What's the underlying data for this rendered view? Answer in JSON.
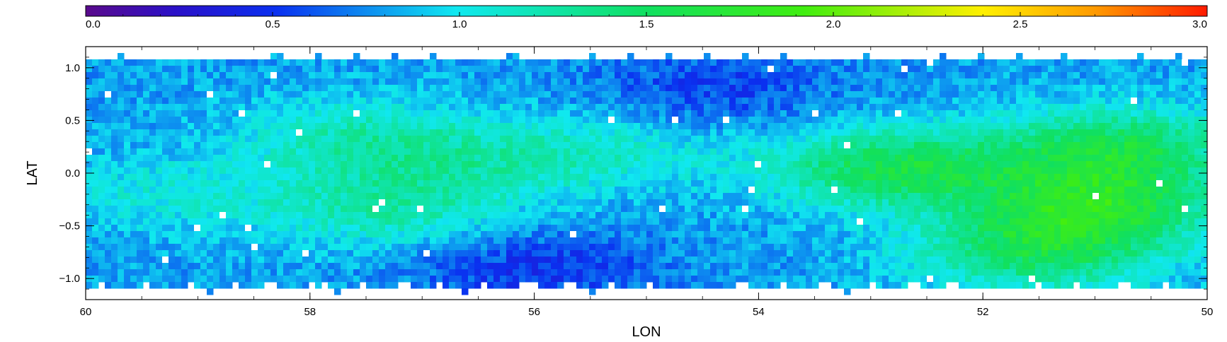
{
  "chart_data": {
    "type": "heatmap",
    "xlabel": "LON",
    "ylabel": "LAT",
    "xlim": [
      60,
      50
    ],
    "ylim": [
      -1.2,
      1.2
    ],
    "x_ticks": [
      60,
      58,
      56,
      54,
      52,
      50
    ],
    "x_tick_labels": [
      "60",
      "58",
      "56",
      "54",
      "52",
      "50"
    ],
    "y_ticks": [
      -1.0,
      -0.5,
      0.0,
      0.5,
      1.0
    ],
    "y_tick_labels": [
      "−1.0",
      "−0.5",
      "0.0",
      "0.5",
      "1.0"
    ],
    "colorbar": {
      "range": [
        0.0,
        3.0
      ],
      "ticks": [
        0.0,
        0.5,
        1.0,
        1.5,
        2.0,
        2.5,
        3.0
      ],
      "tick_labels": [
        "0.0",
        "0.5",
        "1.0",
        "1.5",
        "2.0",
        "2.5",
        "3.0"
      ],
      "placement": "top",
      "colormap": "rainbow"
    },
    "regions": [
      {
        "lon": 57.6,
        "lat": 0.35,
        "value": 1.15
      },
      {
        "lon": 59.3,
        "lat": -0.2,
        "value": 1.05
      },
      {
        "lon": 57.3,
        "lat": -0.35,
        "value": 1.2
      },
      {
        "lon": 56.7,
        "lat": 0.1,
        "value": 1.05
      },
      {
        "lon": 55.4,
        "lat": 0.2,
        "value": 1.1
      },
      {
        "lon": 56.0,
        "lat": -0.9,
        "value": 0.5
      },
      {
        "lon": 54.4,
        "lat": 0.8,
        "value": 0.55
      },
      {
        "lon": 52.8,
        "lat": 0.05,
        "value": 1.55
      },
      {
        "lon": 51.0,
        "lat": -0.3,
        "value": 1.6
      },
      {
        "lon": 51.5,
        "lat": -0.75,
        "value": 1.45
      },
      {
        "lon": 50.8,
        "lat": 0.25,
        "value": 1.5
      }
    ],
    "background_value": 0.8
  }
}
